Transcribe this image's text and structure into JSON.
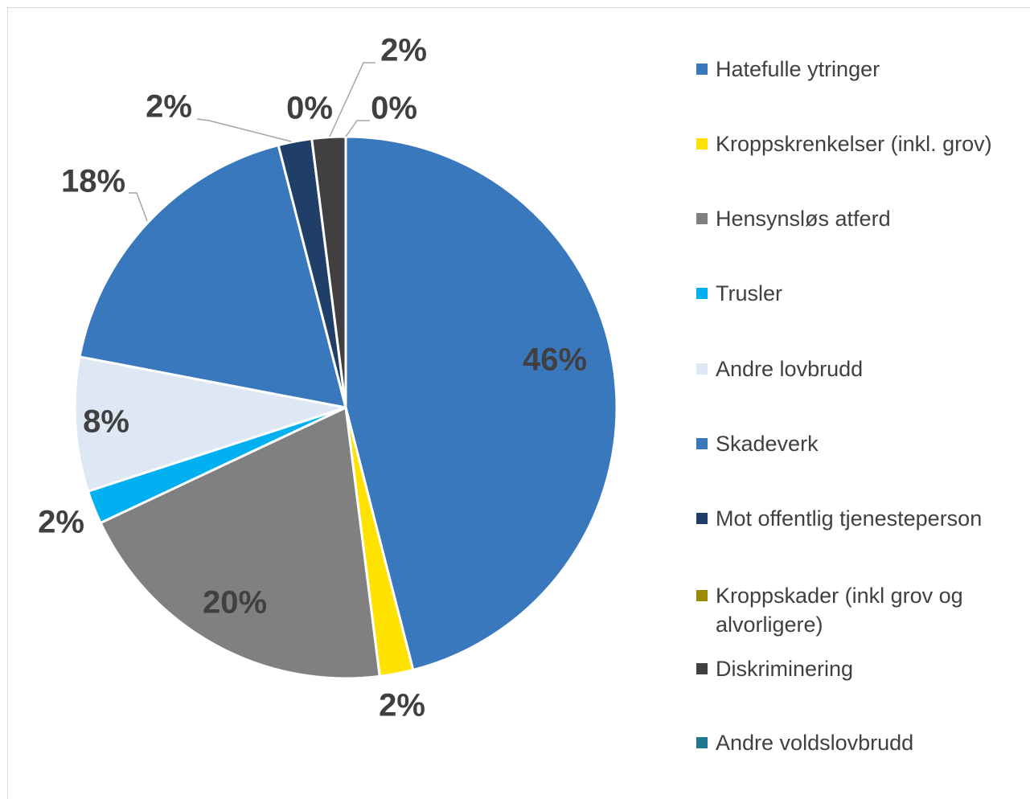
{
  "chart_data": {
    "type": "pie",
    "categories": [
      "Hatefulle ytringer",
      "Kroppskrenkelser (inkl. grov)",
      "Hensynsløs atferd",
      "Trusler",
      "Andre lovbrudd",
      "Skadeverk",
      "Mot offentlig tjenesteperson",
      "Kroppskader (inkl grov og alvorligere)",
      "Diskriminering",
      "Andre voldslovbrudd"
    ],
    "values": [
      46,
      2,
      20,
      2,
      8,
      18,
      2,
      0,
      2,
      0
    ],
    "value_labels": [
      "46%",
      "2%",
      "20%",
      "2%",
      "8%",
      "18%",
      "2%",
      "0%",
      "2%",
      "0%"
    ],
    "colors": [
      "#3a78be",
      "#ffe200",
      "#808080",
      "#00b0f0",
      "#dee8f4",
      "#3a78be",
      "#203f68",
      "#9c8a00",
      "#404040",
      "#1f7890"
    ],
    "legend": "right"
  }
}
